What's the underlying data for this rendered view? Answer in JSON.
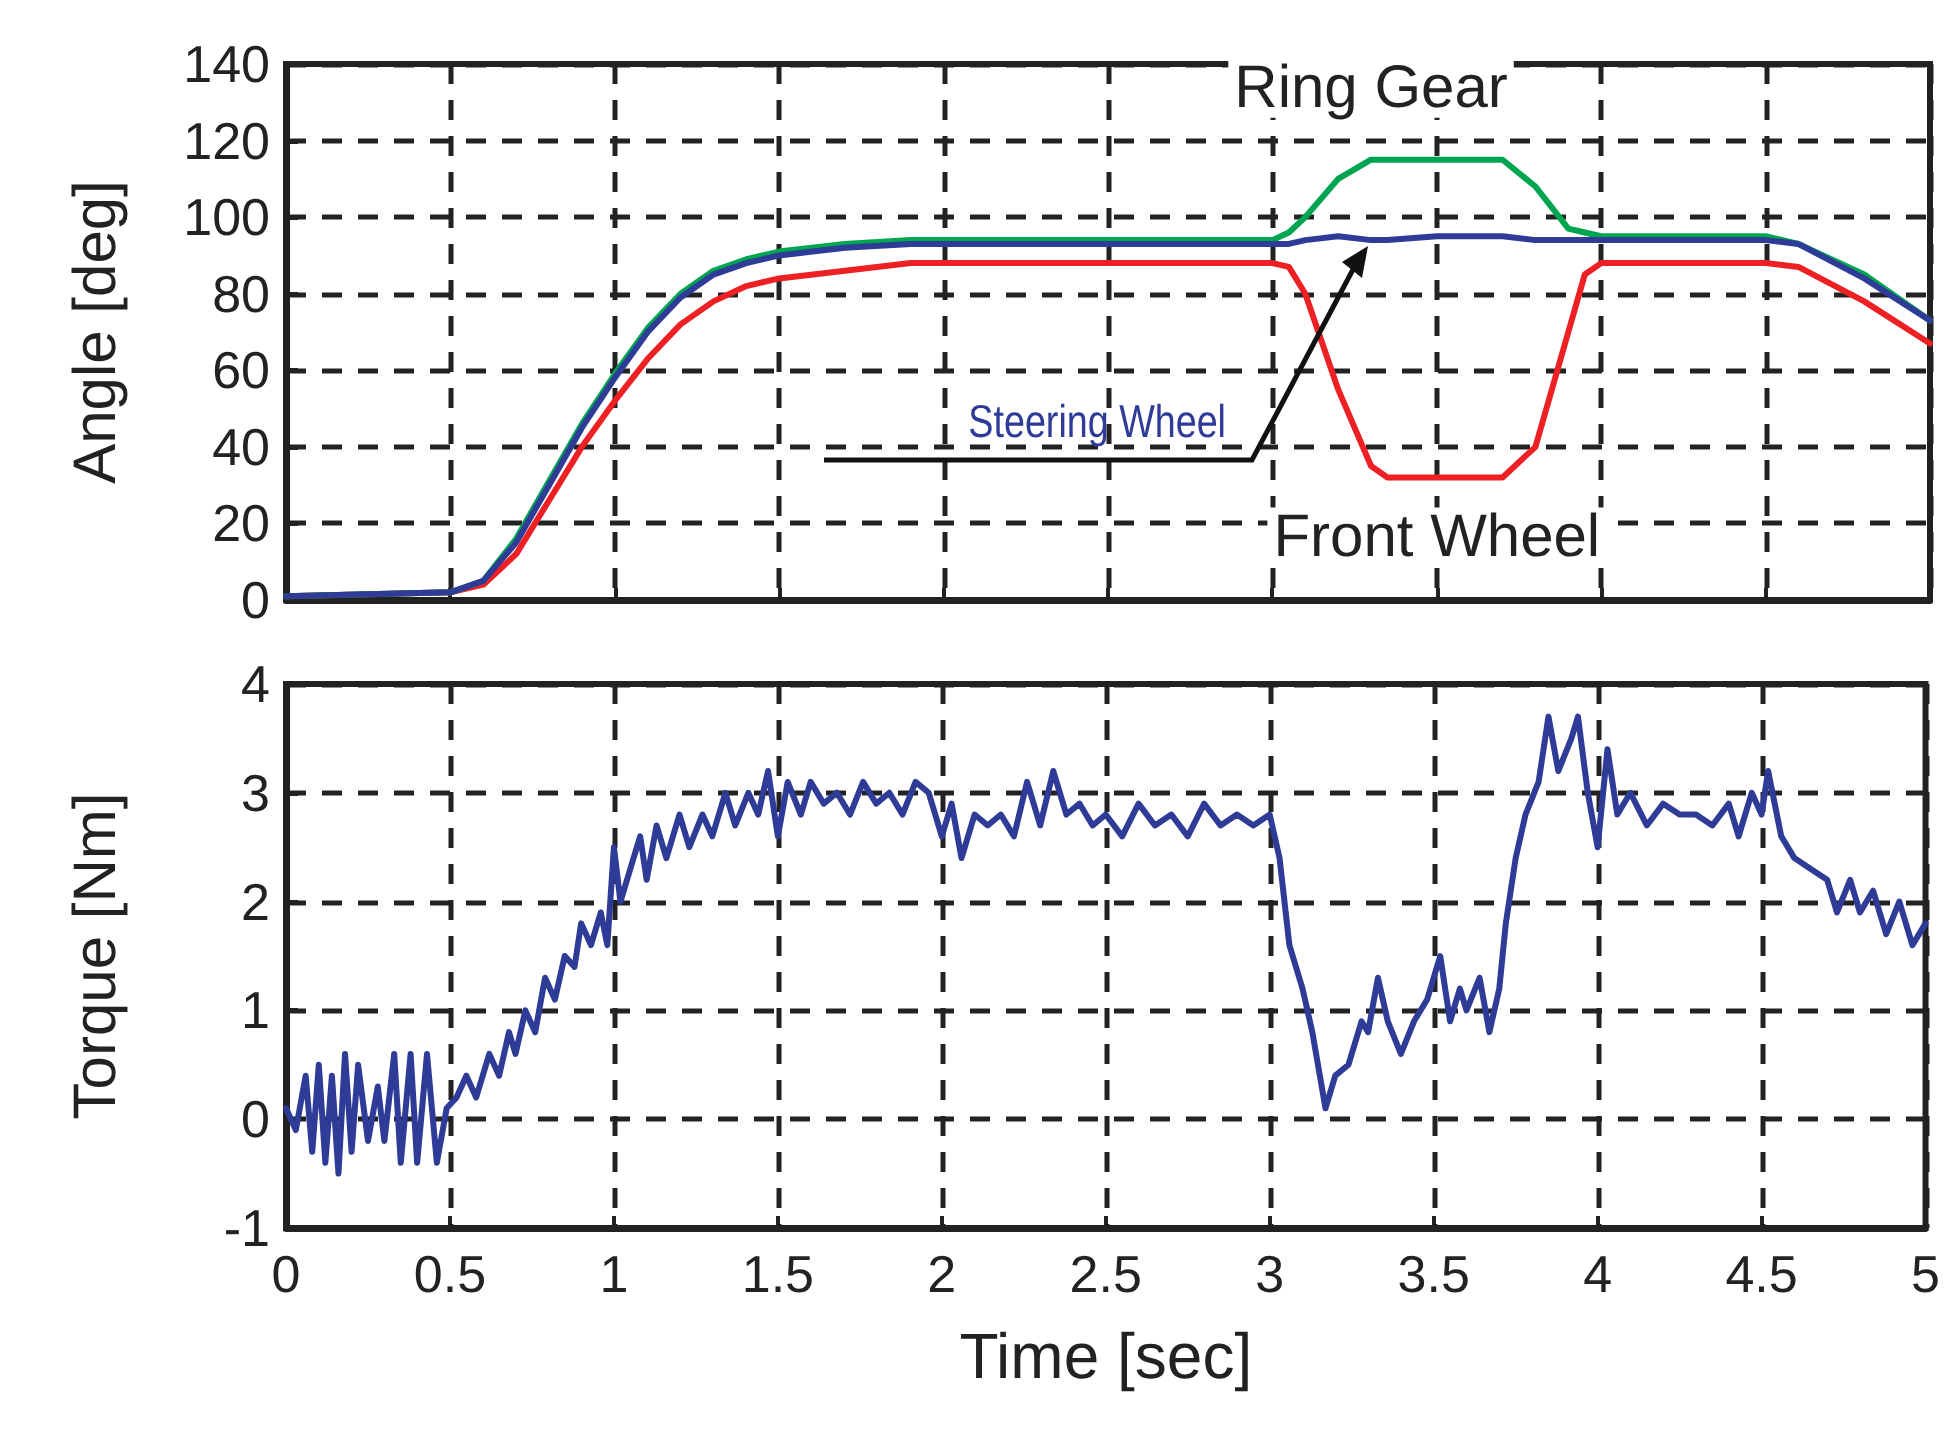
{
  "chart_data": [
    {
      "type": "line",
      "ylabel": "Angle [deg]",
      "xlim": [
        0,
        5
      ],
      "xticks": [
        0,
        0.5,
        1,
        1.5,
        2,
        2.5,
        3,
        3.5,
        4,
        4.5,
        5
      ],
      "ylim": [
        0,
        140
      ],
      "yticks": [
        0,
        20,
        40,
        60,
        80,
        100,
        120,
        140
      ],
      "grid": true,
      "legend": false,
      "marker": "none",
      "line_style": "solid",
      "tick_labels": "y",
      "x": [
        0,
        0.5,
        0.6,
        0.7,
        0.8,
        0.9,
        1.0,
        1.1,
        1.2,
        1.3,
        1.4,
        1.5,
        1.7,
        1.9,
        2.5,
        3.0,
        3.05,
        3.1,
        3.2,
        3.3,
        3.35,
        3.5,
        3.7,
        3.8,
        3.9,
        3.95,
        4.0,
        4.5,
        4.6,
        4.8,
        5.0
      ],
      "series": [
        {
          "name": "Front Wheel",
          "color": "#ed2024",
          "values": [
            1,
            2,
            4,
            12,
            26,
            40,
            52,
            63,
            72,
            78,
            82,
            84,
            86,
            88,
            88,
            88,
            87,
            80,
            55,
            35,
            32,
            32,
            32,
            40,
            70,
            85,
            88,
            88,
            87,
            78,
            67
          ]
        },
        {
          "name": "Ring Gear",
          "color": "#00a550",
          "values": [
            1,
            2,
            5,
            16,
            31,
            46,
            59,
            71,
            80,
            86,
            89,
            91,
            93,
            94,
            94,
            94,
            96,
            100,
            110,
            115,
            115,
            115,
            115,
            108,
            97,
            96,
            95,
            95,
            93,
            85,
            73
          ]
        },
        {
          "name": "Steering Wheel",
          "color": "#2e3b97",
          "values": [
            1,
            2,
            5,
            15,
            30,
            45,
            58,
            70,
            79,
            85,
            88,
            90,
            92,
            93,
            93,
            93,
            93,
            94,
            95,
            94,
            94,
            95,
            95,
            94,
            94,
            94,
            94,
            94,
            93,
            84,
            73
          ]
        }
      ]
    },
    {
      "type": "line",
      "xlabel": "Time [sec]",
      "ylabel": "Torque [Nm]",
      "xlim": [
        0,
        5
      ],
      "xticks": [
        0,
        0.5,
        1,
        1.5,
        2,
        2.5,
        3,
        3.5,
        4,
        4.5,
        5
      ],
      "ylim": [
        -1,
        4
      ],
      "yticks": [
        -1,
        0,
        1,
        2,
        3,
        4
      ],
      "grid": true,
      "legend": false,
      "marker": "none",
      "line_style": "solid",
      "x": [
        0,
        0.03,
        0.06,
        0.08,
        0.1,
        0.12,
        0.14,
        0.16,
        0.18,
        0.2,
        0.22,
        0.25,
        0.28,
        0.3,
        0.33,
        0.35,
        0.38,
        0.4,
        0.43,
        0.46,
        0.49,
        0.52,
        0.55,
        0.58,
        0.62,
        0.65,
        0.68,
        0.7,
        0.73,
        0.76,
        0.79,
        0.82,
        0.85,
        0.88,
        0.9,
        0.93,
        0.96,
        0.98,
        1.0,
        1.02,
        1.05,
        1.08,
        1.1,
        1.13,
        1.16,
        1.2,
        1.23,
        1.27,
        1.3,
        1.34,
        1.37,
        1.41,
        1.44,
        1.47,
        1.5,
        1.53,
        1.57,
        1.6,
        1.64,
        1.68,
        1.72,
        1.76,
        1.8,
        1.84,
        1.88,
        1.92,
        1.96,
        2.0,
        2.03,
        2.06,
        2.1,
        2.14,
        2.18,
        2.22,
        2.26,
        2.3,
        2.34,
        2.38,
        2.42,
        2.46,
        2.5,
        2.55,
        2.6,
        2.65,
        2.7,
        2.75,
        2.8,
        2.85,
        2.9,
        2.95,
        3.0,
        3.03,
        3.06,
        3.1,
        3.13,
        3.17,
        3.2,
        3.24,
        3.28,
        3.3,
        3.33,
        3.36,
        3.4,
        3.44,
        3.48,
        3.52,
        3.55,
        3.58,
        3.6,
        3.64,
        3.67,
        3.7,
        3.72,
        3.75,
        3.78,
        3.82,
        3.85,
        3.88,
        3.92,
        3.94,
        3.97,
        4.0,
        4.03,
        4.06,
        4.1,
        4.15,
        4.2,
        4.25,
        4.3,
        4.35,
        4.4,
        4.43,
        4.47,
        4.5,
        4.52,
        4.56,
        4.6,
        4.65,
        4.7,
        4.73,
        4.77,
        4.8,
        4.84,
        4.88,
        4.92,
        4.96,
        5.0
      ],
      "series": [
        {
          "color": "#2e3b97",
          "values": [
            0.1,
            -0.1,
            0.4,
            -0.3,
            0.5,
            -0.4,
            0.4,
            -0.5,
            0.6,
            -0.3,
            0.5,
            -0.2,
            0.3,
            -0.2,
            0.6,
            -0.4,
            0.6,
            -0.4,
            0.6,
            -0.4,
            0.1,
            0.2,
            0.4,
            0.2,
            0.6,
            0.4,
            0.8,
            0.6,
            1.0,
            0.8,
            1.3,
            1.1,
            1.5,
            1.4,
            1.8,
            1.6,
            1.9,
            1.6,
            2.5,
            2.0,
            2.3,
            2.6,
            2.2,
            2.7,
            2.4,
            2.8,
            2.5,
            2.8,
            2.6,
            3.0,
            2.7,
            3.0,
            2.8,
            3.2,
            2.6,
            3.1,
            2.8,
            3.1,
            2.9,
            3.0,
            2.8,
            3.1,
            2.9,
            3.0,
            2.8,
            3.1,
            3.0,
            2.6,
            2.9,
            2.4,
            2.8,
            2.7,
            2.8,
            2.6,
            3.1,
            2.7,
            3.2,
            2.8,
            2.9,
            2.7,
            2.8,
            2.6,
            2.9,
            2.7,
            2.8,
            2.6,
            2.9,
            2.7,
            2.8,
            2.7,
            2.8,
            2.4,
            1.6,
            1.2,
            0.8,
            0.1,
            0.4,
            0.5,
            0.9,
            0.8,
            1.3,
            0.9,
            0.6,
            0.9,
            1.1,
            1.5,
            0.9,
            1.2,
            1.0,
            1.3,
            0.8,
            1.2,
            1.8,
            2.4,
            2.8,
            3.1,
            3.7,
            3.2,
            3.5,
            3.7,
            3.0,
            2.5,
            3.4,
            2.8,
            3.0,
            2.7,
            2.9,
            2.8,
            2.8,
            2.7,
            2.9,
            2.6,
            3.0,
            2.8,
            3.2,
            2.6,
            2.4,
            2.3,
            2.2,
            1.9,
            2.2,
            1.9,
            2.1,
            1.7,
            2.0,
            1.6,
            1.8
          ]
        }
      ]
    }
  ]
}
